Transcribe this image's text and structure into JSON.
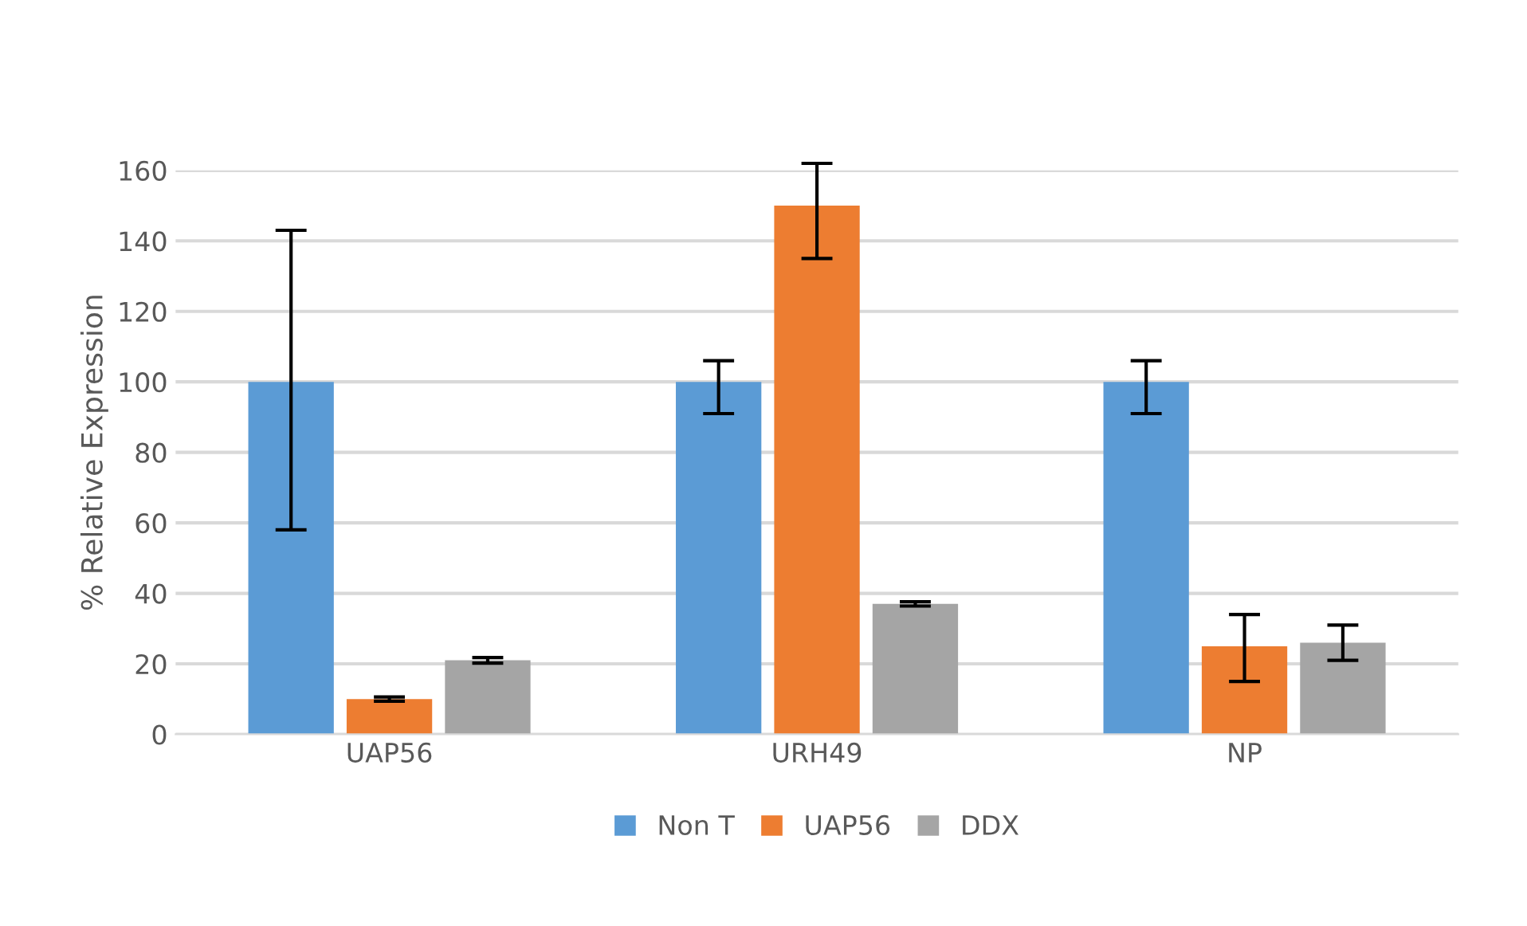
{
  "chart_data": {
    "type": "bar",
    "ylabel": "% Relative Expression",
    "categories": [
      "UAP56",
      "URH49",
      "NP"
    ],
    "series": [
      {
        "name": "Non T",
        "color": "#5b9bd5",
        "values": [
          100,
          100,
          100
        ],
        "errors": [
          [
            58,
            143
          ],
          [
            91,
            106
          ],
          [
            91,
            106
          ]
        ]
      },
      {
        "name": "UAP56",
        "color": "#ed7d31",
        "values": [
          10,
          150,
          25
        ],
        "errors": [
          0.6,
          [
            135,
            162
          ],
          [
            15,
            34
          ]
        ]
      },
      {
        "name": "DDX",
        "color": "#a5a5a5",
        "values": [
          21,
          37,
          26
        ],
        "errors": [
          0.8,
          0.6,
          [
            21,
            31
          ]
        ]
      }
    ],
    "ylim": [
      0,
      160
    ],
    "yticks": [
      0,
      20,
      40,
      60,
      80,
      100,
      120,
      140,
      160
    ],
    "grid": "y",
    "legend": "bottom"
  }
}
